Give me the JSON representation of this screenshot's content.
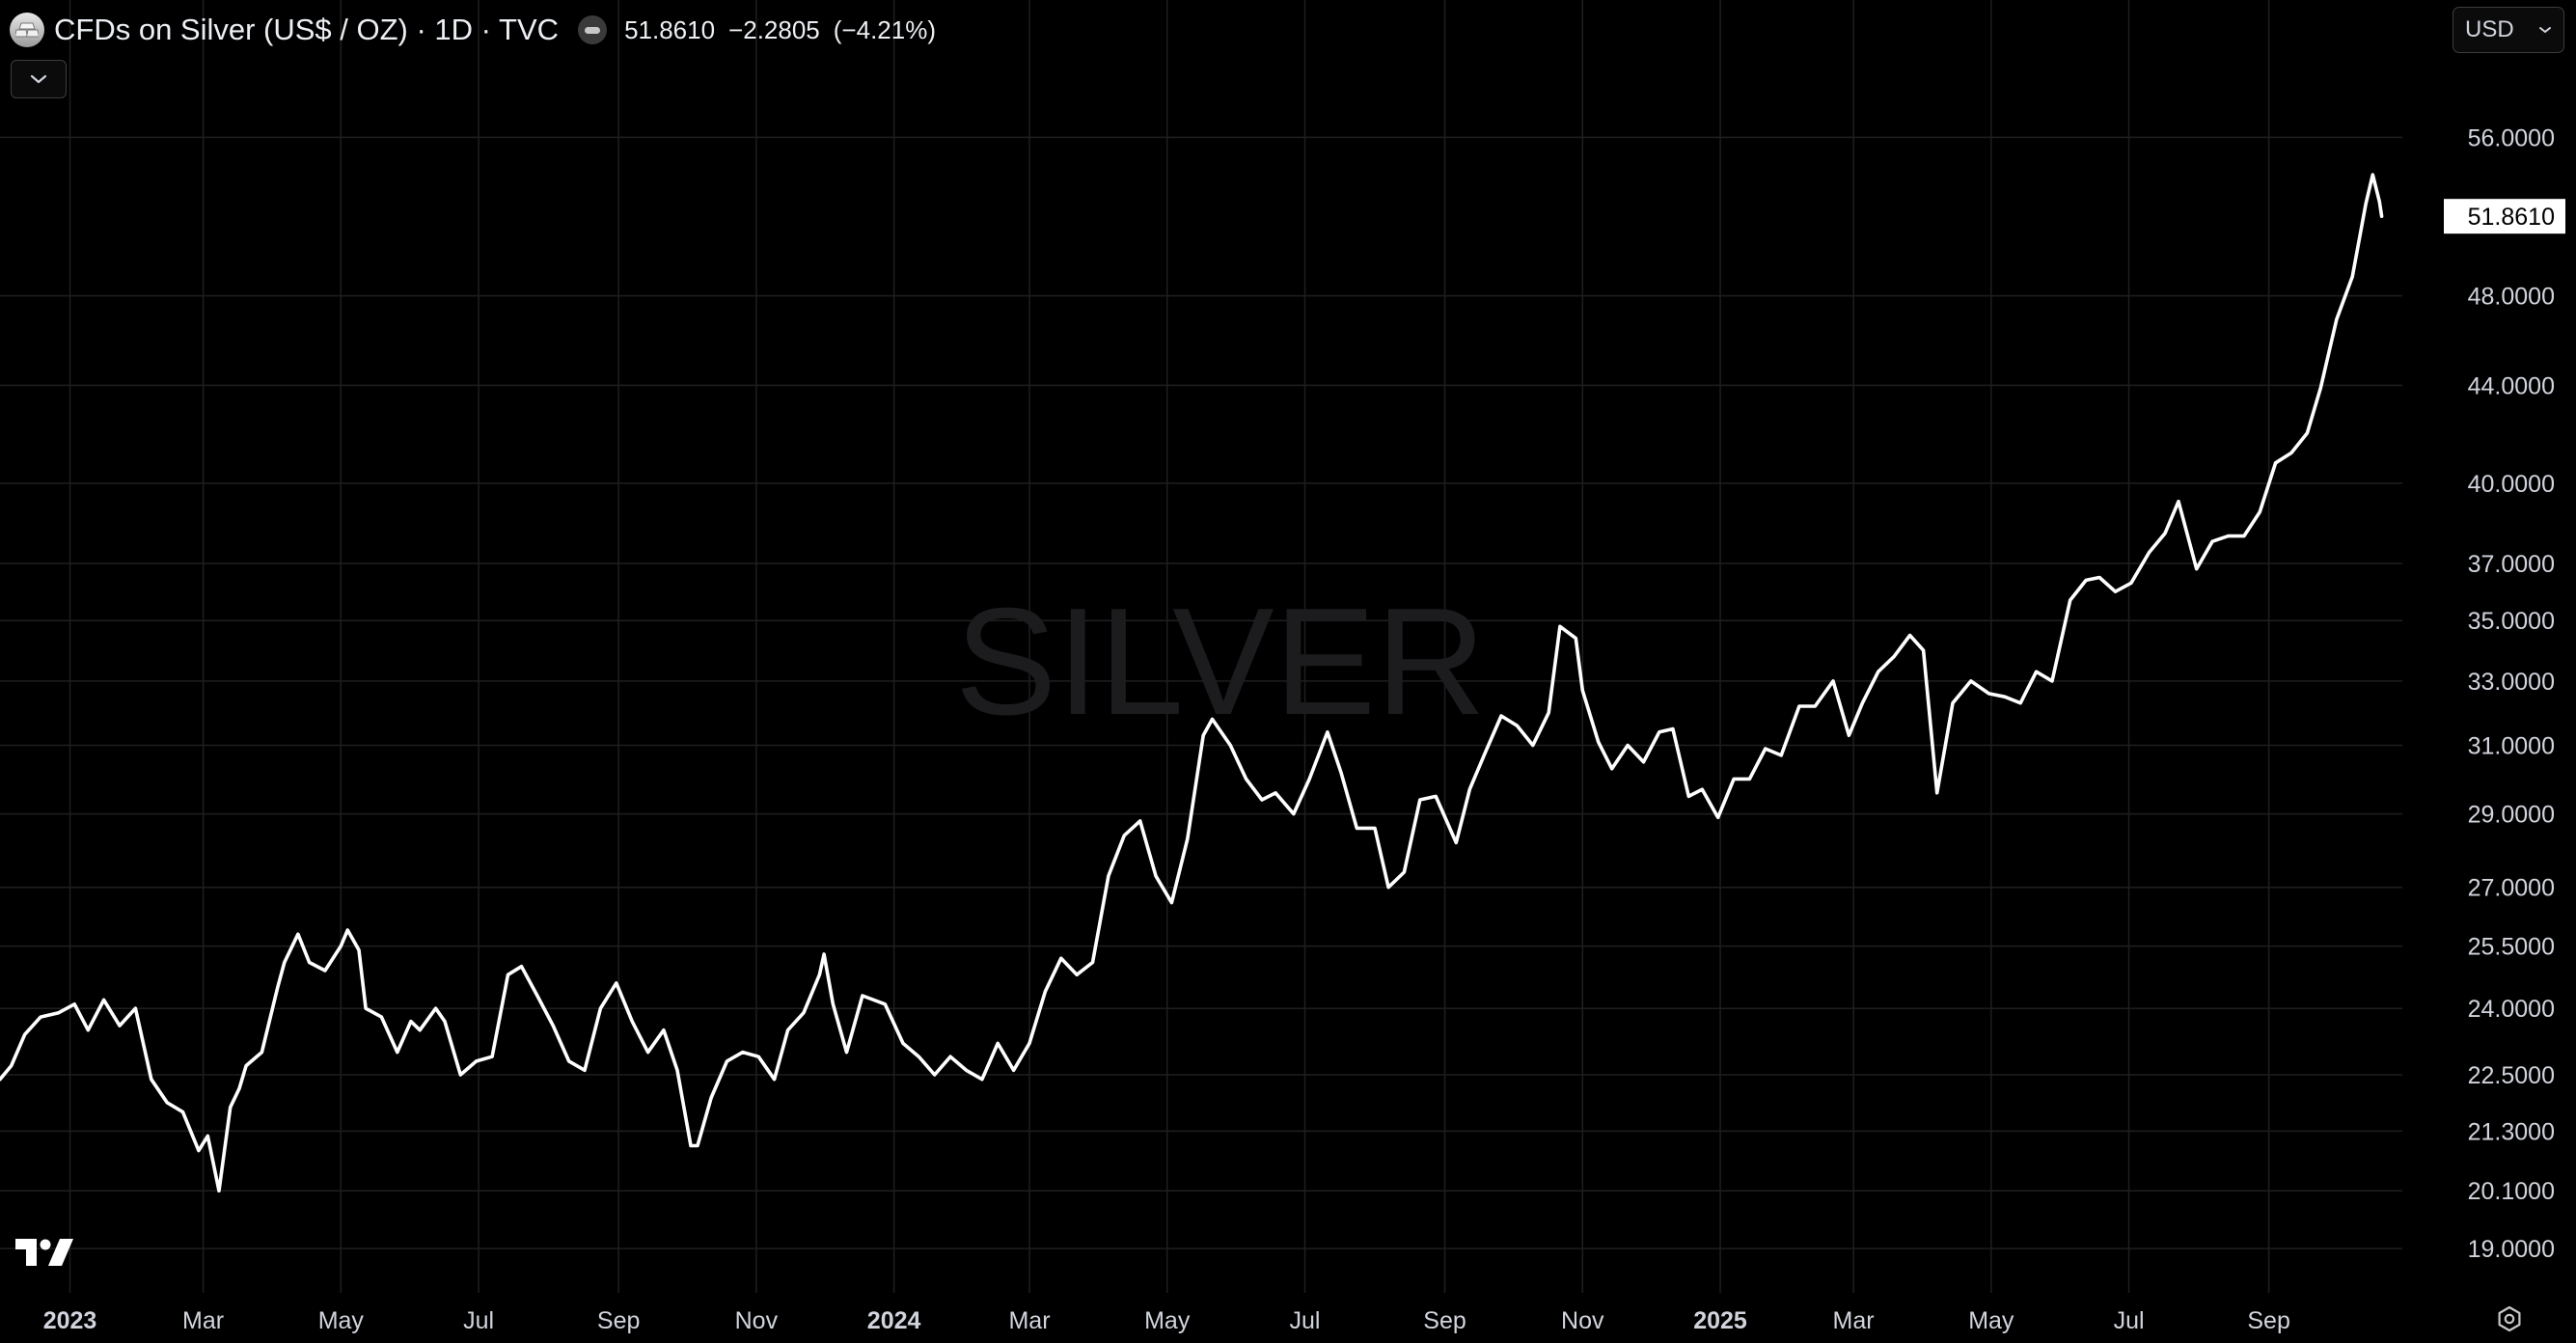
{
  "header": {
    "title": "CFDs on Silver (US$ / OZ) · 1D · TVC",
    "last": "51.8610",
    "change": "−2.2805",
    "change_pct": "(−4.21%)",
    "logo_icon": "silver-bars-icon",
    "status_icon": "market-closed-icon"
  },
  "controls": {
    "currency": "USD",
    "collapse_icon": "chevron-down-icon",
    "currency_icon": "chevron-down-icon",
    "settings_icon": "gear-icon"
  },
  "watermark": "SILVER",
  "colors": {
    "background": "#000000",
    "line": "#ffffff",
    "grid": "#1f1f1f",
    "text": "#d1d4dc",
    "watermark": "#1c1c1e"
  },
  "chart_data": {
    "type": "line",
    "title": "CFDs on Silver (US$ / OZ) · 1D · TVC",
    "y_scale": "log",
    "ylim": [
      18.2,
      60.5
    ],
    "xlim": [
      "2022-12-01",
      "2025-10-28"
    ],
    "grid": true,
    "last_price_label": "51.8610",
    "y_ticks": [
      {
        "value": 56,
        "label": "56.0000"
      },
      {
        "value": 48,
        "label": "48.0000"
      },
      {
        "value": 44,
        "label": "44.0000"
      },
      {
        "value": 40,
        "label": "40.0000"
      },
      {
        "value": 37,
        "label": "37.0000"
      },
      {
        "value": 35,
        "label": "35.0000"
      },
      {
        "value": 33,
        "label": "33.0000"
      },
      {
        "value": 31,
        "label": "31.0000"
      },
      {
        "value": 29,
        "label": "29.0000"
      },
      {
        "value": 27,
        "label": "27.0000"
      },
      {
        "value": 25.5,
        "label": "25.5000"
      },
      {
        "value": 24,
        "label": "24.0000"
      },
      {
        "value": 22.5,
        "label": "22.5000"
      },
      {
        "value": 21.3,
        "label": "21.3000"
      },
      {
        "value": 20.1,
        "label": "20.1000"
      },
      {
        "value": 19,
        "label": "19.0000"
      }
    ],
    "x_ticks": [
      {
        "date": "2023-01-01",
        "label": "2023",
        "major": true
      },
      {
        "date": "2023-03-01",
        "label": "Mar",
        "major": false
      },
      {
        "date": "2023-05-01",
        "label": "May",
        "major": false
      },
      {
        "date": "2023-07-01",
        "label": "Jul",
        "major": false
      },
      {
        "date": "2023-09-01",
        "label": "Sep",
        "major": false
      },
      {
        "date": "2023-11-01",
        "label": "Nov",
        "major": false
      },
      {
        "date": "2024-01-01",
        "label": "2024",
        "major": true
      },
      {
        "date": "2024-03-01",
        "label": "Mar",
        "major": false
      },
      {
        "date": "2024-05-01",
        "label": "May",
        "major": false
      },
      {
        "date": "2024-07-01",
        "label": "Jul",
        "major": false
      },
      {
        "date": "2024-09-01",
        "label": "Sep",
        "major": false
      },
      {
        "date": "2024-11-01",
        "label": "Nov",
        "major": false
      },
      {
        "date": "2025-01-01",
        "label": "2025",
        "major": true
      },
      {
        "date": "2025-03-01",
        "label": "Mar",
        "major": false
      },
      {
        "date": "2025-05-01",
        "label": "May",
        "major": false
      },
      {
        "date": "2025-07-01",
        "label": "Jul",
        "major": false
      },
      {
        "date": "2025-09-01",
        "label": "Sep",
        "major": false
      }
    ],
    "series": [
      {
        "values": [
          [
            "2022-12-01",
            22.4
          ],
          [
            "2022-12-06",
            22.7
          ],
          [
            "2022-12-12",
            23.4
          ],
          [
            "2022-12-19",
            23.8
          ],
          [
            "2022-12-27",
            23.9
          ],
          [
            "2023-01-03",
            24.1
          ],
          [
            "2023-01-09",
            23.5
          ],
          [
            "2023-01-16",
            24.2
          ],
          [
            "2023-01-23",
            23.6
          ],
          [
            "2023-01-30",
            24.0
          ],
          [
            "2023-02-06",
            22.4
          ],
          [
            "2023-02-13",
            21.9
          ],
          [
            "2023-02-20",
            21.7
          ],
          [
            "2023-02-27",
            20.9
          ],
          [
            "2023-03-03",
            21.2
          ],
          [
            "2023-03-08",
            20.1
          ],
          [
            "2023-03-13",
            21.8
          ],
          [
            "2023-03-17",
            22.2
          ],
          [
            "2023-03-20",
            22.7
          ],
          [
            "2023-03-27",
            23.0
          ],
          [
            "2023-04-03",
            24.5
          ],
          [
            "2023-04-06",
            25.1
          ],
          [
            "2023-04-12",
            25.8
          ],
          [
            "2023-04-17",
            25.1
          ],
          [
            "2023-04-24",
            24.9
          ],
          [
            "2023-05-01",
            25.5
          ],
          [
            "2023-05-04",
            25.9
          ],
          [
            "2023-05-09",
            25.4
          ],
          [
            "2023-05-12",
            24.0
          ],
          [
            "2023-05-19",
            23.8
          ],
          [
            "2023-05-26",
            23.0
          ],
          [
            "2023-06-01",
            23.7
          ],
          [
            "2023-06-05",
            23.5
          ],
          [
            "2023-06-12",
            24.0
          ],
          [
            "2023-06-16",
            23.7
          ],
          [
            "2023-06-23",
            22.5
          ],
          [
            "2023-06-30",
            22.8
          ],
          [
            "2023-07-07",
            22.9
          ],
          [
            "2023-07-14",
            24.8
          ],
          [
            "2023-07-20",
            25.0
          ],
          [
            "2023-07-27",
            24.3
          ],
          [
            "2023-08-03",
            23.6
          ],
          [
            "2023-08-10",
            22.8
          ],
          [
            "2023-08-17",
            22.6
          ],
          [
            "2023-08-24",
            24.0
          ],
          [
            "2023-08-31",
            24.6
          ],
          [
            "2023-09-07",
            23.7
          ],
          [
            "2023-09-14",
            23.0
          ],
          [
            "2023-09-21",
            23.5
          ],
          [
            "2023-09-27",
            22.6
          ],
          [
            "2023-10-03",
            21.0
          ],
          [
            "2023-10-06",
            21.0
          ],
          [
            "2023-10-12",
            22.0
          ],
          [
            "2023-10-19",
            22.8
          ],
          [
            "2023-10-26",
            23.0
          ],
          [
            "2023-11-02",
            22.9
          ],
          [
            "2023-11-09",
            22.4
          ],
          [
            "2023-11-15",
            23.5
          ],
          [
            "2023-11-22",
            23.9
          ],
          [
            "2023-11-29",
            24.8
          ],
          [
            "2023-12-01",
            25.3
          ],
          [
            "2023-12-05",
            24.1
          ],
          [
            "2023-12-11",
            23.0
          ],
          [
            "2023-12-18",
            24.3
          ],
          [
            "2023-12-28",
            24.1
          ],
          [
            "2024-01-05",
            23.2
          ],
          [
            "2024-01-12",
            22.9
          ],
          [
            "2024-01-19",
            22.5
          ],
          [
            "2024-01-26",
            22.9
          ],
          [
            "2024-02-02",
            22.6
          ],
          [
            "2024-02-09",
            22.4
          ],
          [
            "2024-02-16",
            23.2
          ],
          [
            "2024-02-23",
            22.6
          ],
          [
            "2024-03-01",
            23.2
          ],
          [
            "2024-03-08",
            24.4
          ],
          [
            "2024-03-15",
            25.2
          ],
          [
            "2024-03-22",
            24.8
          ],
          [
            "2024-03-29",
            25.1
          ],
          [
            "2024-04-05",
            27.3
          ],
          [
            "2024-04-12",
            28.4
          ],
          [
            "2024-04-19",
            28.8
          ],
          [
            "2024-04-26",
            27.3
          ],
          [
            "2024-05-03",
            26.6
          ],
          [
            "2024-05-10",
            28.3
          ],
          [
            "2024-05-17",
            31.3
          ],
          [
            "2024-05-21",
            31.8
          ],
          [
            "2024-05-29",
            31.0
          ],
          [
            "2024-06-05",
            30.0
          ],
          [
            "2024-06-12",
            29.4
          ],
          [
            "2024-06-18",
            29.6
          ],
          [
            "2024-06-26",
            29.0
          ],
          [
            "2024-07-03",
            30.0
          ],
          [
            "2024-07-11",
            31.4
          ],
          [
            "2024-07-17",
            30.2
          ],
          [
            "2024-07-24",
            28.6
          ],
          [
            "2024-08-01",
            28.6
          ],
          [
            "2024-08-07",
            27.0
          ],
          [
            "2024-08-14",
            27.4
          ],
          [
            "2024-08-21",
            29.4
          ],
          [
            "2024-08-28",
            29.5
          ],
          [
            "2024-09-06",
            28.2
          ],
          [
            "2024-09-12",
            29.7
          ],
          [
            "2024-09-19",
            30.8
          ],
          [
            "2024-09-26",
            31.9
          ],
          [
            "2024-10-03",
            31.6
          ],
          [
            "2024-10-10",
            31.0
          ],
          [
            "2024-10-17",
            32.0
          ],
          [
            "2024-10-22",
            34.8
          ],
          [
            "2024-10-29",
            34.4
          ],
          [
            "2024-11-01",
            32.7
          ],
          [
            "2024-11-08",
            31.1
          ],
          [
            "2024-11-14",
            30.3
          ],
          [
            "2024-11-21",
            31.0
          ],
          [
            "2024-11-28",
            30.5
          ],
          [
            "2024-12-05",
            31.4
          ],
          [
            "2024-12-11",
            31.5
          ],
          [
            "2024-12-18",
            29.5
          ],
          [
            "2024-12-24",
            29.7
          ],
          [
            "2024-12-31",
            28.9
          ],
          [
            "2025-01-07",
            30.0
          ],
          [
            "2025-01-14",
            30.0
          ],
          [
            "2025-01-21",
            30.9
          ],
          [
            "2025-01-28",
            30.7
          ],
          [
            "2025-02-05",
            32.2
          ],
          [
            "2025-02-12",
            32.2
          ],
          [
            "2025-02-20",
            33.0
          ],
          [
            "2025-02-27",
            31.3
          ],
          [
            "2025-03-05",
            32.3
          ],
          [
            "2025-03-12",
            33.3
          ],
          [
            "2025-03-19",
            33.8
          ],
          [
            "2025-03-26",
            34.5
          ],
          [
            "2025-04-01",
            34.0
          ],
          [
            "2025-04-07",
            29.6
          ],
          [
            "2025-04-14",
            32.3
          ],
          [
            "2025-04-22",
            33.0
          ],
          [
            "2025-04-30",
            32.6
          ],
          [
            "2025-05-07",
            32.5
          ],
          [
            "2025-05-14",
            32.3
          ],
          [
            "2025-05-21",
            33.3
          ],
          [
            "2025-05-28",
            33.0
          ],
          [
            "2025-06-05",
            35.7
          ],
          [
            "2025-06-12",
            36.4
          ],
          [
            "2025-06-18",
            36.5
          ],
          [
            "2025-06-25",
            36.0
          ],
          [
            "2025-07-02",
            36.3
          ],
          [
            "2025-07-10",
            37.4
          ],
          [
            "2025-07-17",
            38.1
          ],
          [
            "2025-07-23",
            39.3
          ],
          [
            "2025-07-31",
            36.8
          ],
          [
            "2025-08-07",
            37.8
          ],
          [
            "2025-08-14",
            38.0
          ],
          [
            "2025-08-21",
            38.0
          ],
          [
            "2025-08-28",
            38.9
          ],
          [
            "2025-09-04",
            40.8
          ],
          [
            "2025-09-11",
            41.2
          ],
          [
            "2025-09-18",
            42.0
          ],
          [
            "2025-09-24",
            43.9
          ],
          [
            "2025-10-01",
            46.9
          ],
          [
            "2025-10-08",
            48.9
          ],
          [
            "2025-10-14",
            52.5
          ],
          [
            "2025-10-17",
            54.0
          ],
          [
            "2025-10-20",
            52.6
          ],
          [
            "2025-10-21",
            51.86
          ]
        ]
      }
    ]
  }
}
